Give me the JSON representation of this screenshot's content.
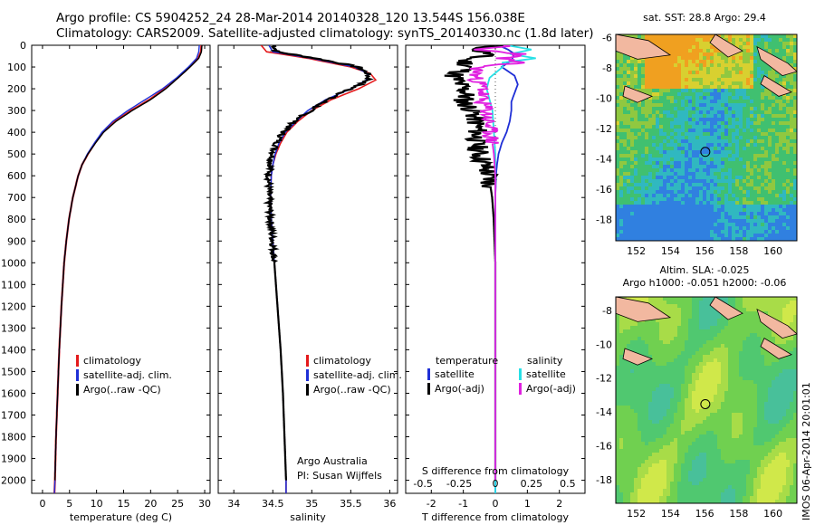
{
  "header": {
    "line1": "Argo profile: CS 5904252_24 28-Mar-2014 20140328_120 13.544S 156.038E",
    "line2": "Climatology: CARS2009. Satellite-adjusted climatology: synTS_20140330.nc (1.8d later)"
  },
  "stamp": "IMOS 06-Apr-2014 20:01:01",
  "colors": {
    "climatology": "#e41a1c",
    "satellite": "#1f2fd6",
    "argo": "#000000",
    "satellite_s": "#28e0e6",
    "argo_s": "#e020e0"
  },
  "chart_data": [
    {
      "type": "line",
      "id": "temperature",
      "xlabel": "temperature (deg C)",
      "ylabel": "",
      "xlim": [
        -2,
        31
      ],
      "ylim": [
        2060,
        0
      ],
      "xticks": [
        "0",
        "5",
        "10",
        "15",
        "20",
        "25",
        "30"
      ],
      "yticks": [
        "0",
        "100",
        "200",
        "300",
        "400",
        "500",
        "600",
        "700",
        "800",
        "900",
        "1000",
        "1100",
        "1200",
        "1300",
        "1400",
        "1500",
        "1600",
        "1700",
        "1800",
        "1900",
        "2000"
      ],
      "legend": [
        "climatology",
        "satellite-adj. clim.",
        "Argo(..raw -QC)"
      ],
      "series": [
        {
          "name": "climatology",
          "depth": [
            0,
            30,
            60,
            100,
            150,
            200,
            250,
            300,
            350,
            400,
            450,
            500,
            550,
            600,
            700,
            800,
            900,
            1000,
            1200,
            1400,
            1600,
            1800,
            2000,
            2060
          ],
          "values": [
            29.4,
            29.3,
            28.8,
            27.2,
            25.0,
            22.6,
            19.8,
            16.4,
            13.4,
            11.2,
            9.7,
            8.4,
            7.3,
            6.6,
            5.6,
            4.9,
            4.4,
            4.0,
            3.5,
            3.1,
            2.8,
            2.5,
            2.3,
            2.2
          ]
        },
        {
          "name": "satellite-adj. clim.",
          "depth": [
            0,
            30,
            60,
            100,
            150,
            200,
            250,
            300,
            350,
            400,
            450,
            500,
            550,
            600,
            700,
            800,
            900,
            1000,
            1200,
            1400,
            1600,
            1800,
            2000,
            2060
          ],
          "values": [
            29.0,
            28.9,
            28.5,
            27.0,
            24.8,
            22.2,
            19.0,
            15.8,
            13.0,
            11.0,
            9.6,
            8.3,
            7.3,
            6.6,
            5.6,
            4.9,
            4.4,
            4.0,
            3.5,
            3.1,
            2.8,
            2.5,
            2.3,
            2.2
          ]
        },
        {
          "name": "Argo(..raw -QC)",
          "depth": [
            0,
            30,
            60,
            100,
            150,
            200,
            250,
            300,
            350,
            400,
            450,
            500,
            550,
            600,
            700,
            800,
            900,
            1000,
            1200,
            1400,
            1600,
            1800,
            2000
          ],
          "values": [
            29.5,
            29.4,
            28.9,
            27.3,
            25.1,
            22.8,
            20.0,
            16.6,
            13.6,
            11.3,
            9.8,
            8.4,
            7.3,
            6.6,
            5.6,
            4.9,
            4.4,
            4.0,
            3.5,
            3.1,
            2.8,
            2.5,
            2.3
          ]
        }
      ]
    },
    {
      "type": "line",
      "id": "salinity",
      "xlabel": "salinity",
      "xlim": [
        33.8,
        36.1
      ],
      "ylim": [
        2060,
        0
      ],
      "xticks": [
        "34",
        "34.5",
        "35",
        "35.5",
        "36"
      ],
      "legend": [
        "climatology",
        "satellite-adj. clim.",
        "Argo(..raw -QC)"
      ],
      "annotation": [
        "Argo Australia",
        "PI: Susan Wijffels"
      ],
      "series": [
        {
          "name": "climatology",
          "depth": [
            0,
            30,
            60,
            100,
            130,
            160,
            200,
            250,
            300,
            350,
            400,
            450,
            500,
            550,
            600,
            700,
            800,
            900,
            1000,
            1200,
            1400,
            1600,
            1800,
            2000,
            2060
          ],
          "values": [
            34.35,
            34.42,
            34.95,
            35.5,
            35.75,
            35.82,
            35.6,
            35.25,
            35.0,
            34.82,
            34.68,
            34.6,
            34.54,
            34.5,
            34.48,
            34.47,
            34.48,
            34.5,
            34.52,
            34.56,
            34.6,
            34.63,
            34.65,
            34.67,
            34.67
          ]
        },
        {
          "name": "satellite-adj. clim.",
          "depth": [
            0,
            30,
            60,
            100,
            130,
            160,
            200,
            250,
            300,
            350,
            400,
            450,
            500,
            550,
            600,
            700,
            800,
            900,
            1000,
            1200,
            1400,
            1600,
            1800,
            2000,
            2060
          ],
          "values": [
            34.45,
            34.5,
            35.0,
            35.55,
            35.72,
            35.7,
            35.5,
            35.18,
            34.95,
            34.8,
            34.66,
            34.58,
            34.53,
            34.5,
            34.48,
            34.47,
            34.48,
            34.5,
            34.52,
            34.56,
            34.6,
            34.63,
            34.65,
            34.67,
            34.67
          ]
        },
        {
          "name": "Argo(..raw -QC)",
          "depth": [
            0,
            30,
            60,
            100,
            130,
            160,
            200,
            250,
            300,
            350,
            400,
            450,
            500,
            550,
            600,
            700,
            800,
            900,
            1000,
            1200,
            1400,
            1600,
            1800,
            2000
          ],
          "values": [
            34.52,
            34.55,
            35.05,
            35.6,
            35.72,
            35.73,
            35.5,
            35.2,
            34.98,
            34.78,
            34.63,
            34.55,
            34.5,
            34.47,
            34.45,
            34.45,
            34.47,
            34.5,
            34.52,
            34.56,
            34.6,
            34.63,
            34.65,
            34.67
          ]
        }
      ]
    },
    {
      "type": "line",
      "id": "difference",
      "xlabel": "T difference from climatology",
      "xlabel_top": "S difference from climatology",
      "xlim": [
        -2.8,
        2.8
      ],
      "ylim": [
        2060,
        0
      ],
      "xticks": [
        "-2",
        "-1",
        "0",
        "1",
        "2"
      ],
      "sticks": [
        "-0.5",
        "-0.25",
        "0",
        "0.25",
        "0.5"
      ],
      "legend_headers": [
        "temperature",
        "salinity"
      ],
      "legend_t": [
        "satellite",
        "Argo(-adj)"
      ],
      "legend_s": [
        "satellite",
        "Argo(-adj)"
      ],
      "series": [
        {
          "name": "T satellite",
          "depth": [
            0,
            20,
            40,
            70,
            100,
            140,
            180,
            220,
            260,
            300,
            350,
            400,
            450,
            500,
            550,
            600,
            700,
            800,
            1000,
            1500,
            2060
          ],
          "values": [
            0.1,
            0.4,
            0.6,
            0.5,
            0.2,
            0.6,
            0.7,
            0.6,
            0.5,
            0.5,
            0.45,
            0.35,
            0.2,
            0.1,
            0.05,
            0.02,
            0,
            0,
            0,
            0,
            0
          ]
        },
        {
          "name": "T Argo(-adj)",
          "depth": [
            0,
            20,
            40,
            70,
            100,
            140,
            180,
            220,
            260,
            300,
            350,
            400,
            450,
            500,
            550,
            600,
            700,
            800,
            1000,
            1500,
            2000
          ],
          "values": [
            0.1,
            -0.6,
            -0.2,
            -1.0,
            -0.8,
            -1.3,
            -1.1,
            -0.9,
            -1.0,
            -0.7,
            -0.6,
            -0.55,
            -0.6,
            -0.5,
            -0.35,
            -0.2,
            -0.1,
            -0.05,
            0,
            0,
            0
          ]
        },
        {
          "name": "S satellite",
          "depth": [
            0,
            20,
            40,
            60,
            80,
            100,
            150,
            200,
            300,
            400,
            500,
            600,
            800,
            1000,
            1500,
            2060
          ],
          "values": [
            0.08,
            0.25,
            0.1,
            0.28,
            0.05,
            0.05,
            -0.04,
            -0.06,
            -0.02,
            -0.01,
            0,
            0,
            0,
            0,
            0,
            0
          ]
        },
        {
          "name": "S Argo(-adj)",
          "depth": [
            0,
            20,
            40,
            60,
            80,
            100,
            150,
            200,
            250,
            300,
            350,
            400,
            450,
            500,
            600,
            800,
            1000,
            2000
          ],
          "values": [
            0.1,
            -0.15,
            0.2,
            0.05,
            0.15,
            -0.12,
            -0.14,
            -0.08,
            -0.1,
            -0.06,
            -0.05,
            -0.04,
            -0.02,
            -0.01,
            0,
            0,
            0,
            0
          ]
        }
      ]
    },
    {
      "type": "heatmap",
      "id": "sst",
      "title": "sat. SST: 28.8  Argo: 29.4",
      "xticks": [
        "152",
        "154",
        "156",
        "158",
        "160"
      ],
      "yticks": [
        "-6",
        "-8",
        "-10",
        "-12",
        "-14",
        "-16",
        "-18"
      ],
      "xlim": [
        150.8,
        161.4
      ],
      "ylim": [
        -19.4,
        -5.8
      ],
      "marker": {
        "lon": 156.04,
        "lat": -13.54
      }
    },
    {
      "type": "heatmap",
      "id": "sla",
      "title1": "Altim. SLA: -0.025",
      "title2": "Argo h1000: -0.051  h2000: -0.06",
      "xticks": [
        "152",
        "154",
        "156",
        "158",
        "160"
      ],
      "yticks": [
        "-8",
        "-10",
        "-12",
        "-14",
        "-16",
        "-18"
      ],
      "xlim": [
        150.8,
        161.4
      ],
      "ylim": [
        -19.4,
        -7.2
      ],
      "marker": {
        "lon": 156.04,
        "lat": -13.54
      }
    }
  ]
}
